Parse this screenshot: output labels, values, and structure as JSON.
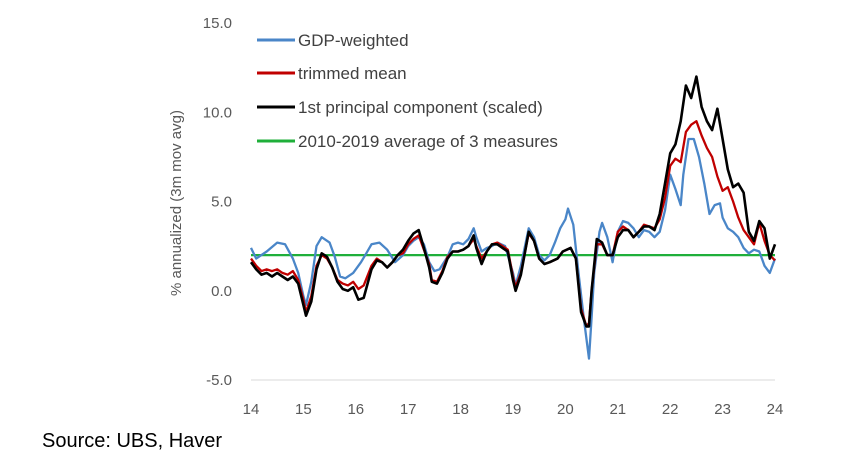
{
  "chart_data": {
    "type": "line",
    "title": "",
    "xlabel": "",
    "ylabel": "% annualized (3m mov avg)",
    "xlim": [
      14,
      24
    ],
    "ylim": [
      -5,
      15
    ],
    "x_ticks": [
      "14",
      "15",
      "16",
      "17",
      "18",
      "19",
      "20",
      "21",
      "22",
      "23",
      "24"
    ],
    "y_ticks": [
      "-5.0",
      "0.0",
      "5.0",
      "10.0",
      "15.0"
    ],
    "legend_position": "top-left",
    "grid": false,
    "series": [
      {
        "name": "GDP-weighted",
        "color": "#4A86C8",
        "points": [
          [
            14.0,
            2.4
          ],
          [
            14.1,
            1.8
          ],
          [
            14.3,
            2.2
          ],
          [
            14.5,
            2.7
          ],
          [
            14.65,
            2.6
          ],
          [
            14.8,
            1.8
          ],
          [
            14.9,
            1.0
          ],
          [
            15.0,
            -0.3
          ],
          [
            15.05,
            -0.8
          ],
          [
            15.15,
            0.5
          ],
          [
            15.25,
            2.5
          ],
          [
            15.35,
            3.0
          ],
          [
            15.5,
            2.7
          ],
          [
            15.6,
            1.9
          ],
          [
            15.7,
            0.8
          ],
          [
            15.8,
            0.7
          ],
          [
            15.95,
            1.0
          ],
          [
            16.1,
            1.6
          ],
          [
            16.2,
            2.1
          ],
          [
            16.3,
            2.6
          ],
          [
            16.45,
            2.7
          ],
          [
            16.6,
            2.3
          ],
          [
            16.75,
            1.6
          ],
          [
            16.9,
            2.0
          ],
          [
            17.0,
            2.5
          ],
          [
            17.1,
            2.8
          ],
          [
            17.2,
            3.0
          ],
          [
            17.3,
            2.6
          ],
          [
            17.4,
            1.6
          ],
          [
            17.5,
            1.1
          ],
          [
            17.6,
            1.2
          ],
          [
            17.75,
            1.9
          ],
          [
            17.85,
            2.6
          ],
          [
            17.95,
            2.7
          ],
          [
            18.05,
            2.6
          ],
          [
            18.15,
            2.9
          ],
          [
            18.25,
            3.5
          ],
          [
            18.3,
            3.0
          ],
          [
            18.4,
            2.2
          ],
          [
            18.5,
            2.4
          ],
          [
            18.6,
            2.5
          ],
          [
            18.7,
            2.7
          ],
          [
            18.85,
            2.5
          ],
          [
            19.0,
            1.0
          ],
          [
            19.05,
            0.3
          ],
          [
            19.15,
            1.4
          ],
          [
            19.25,
            2.8
          ],
          [
            19.3,
            3.5
          ],
          [
            19.4,
            3.0
          ],
          [
            19.5,
            2.0
          ],
          [
            19.6,
            1.7
          ],
          [
            19.7,
            2.0
          ],
          [
            19.8,
            2.7
          ],
          [
            19.9,
            3.5
          ],
          [
            20.0,
            4.0
          ],
          [
            20.05,
            4.6
          ],
          [
            20.15,
            3.7
          ],
          [
            20.25,
            1.0
          ],
          [
            20.35,
            -1.5
          ],
          [
            20.45,
            -3.8
          ],
          [
            20.5,
            -1.5
          ],
          [
            20.55,
            1.0
          ],
          [
            20.65,
            3.3
          ],
          [
            20.7,
            3.8
          ],
          [
            20.8,
            3.0
          ],
          [
            20.9,
            1.6
          ],
          [
            21.0,
            3.3
          ],
          [
            21.1,
            3.9
          ],
          [
            21.2,
            3.8
          ],
          [
            21.3,
            3.5
          ],
          [
            21.4,
            3.0
          ],
          [
            21.5,
            3.4
          ],
          [
            21.6,
            3.3
          ],
          [
            21.7,
            3.0
          ],
          [
            21.8,
            3.3
          ],
          [
            21.9,
            4.5
          ],
          [
            22.0,
            6.5
          ],
          [
            22.1,
            5.7
          ],
          [
            22.2,
            4.8
          ],
          [
            22.25,
            6.5
          ],
          [
            22.35,
            8.5
          ],
          [
            22.45,
            8.5
          ],
          [
            22.55,
            7.5
          ],
          [
            22.65,
            6.0
          ],
          [
            22.75,
            4.3
          ],
          [
            22.85,
            4.8
          ],
          [
            22.95,
            4.9
          ],
          [
            23.0,
            4.1
          ],
          [
            23.1,
            3.5
          ],
          [
            23.2,
            3.3
          ],
          [
            23.3,
            3.0
          ],
          [
            23.4,
            2.4
          ],
          [
            23.5,
            2.1
          ],
          [
            23.6,
            2.3
          ],
          [
            23.7,
            2.2
          ],
          [
            23.8,
            1.4
          ],
          [
            23.9,
            1.0
          ],
          [
            24.0,
            1.8
          ]
        ]
      },
      {
        "name": "trimmed mean",
        "color": "#C00000",
        "points": [
          [
            14.0,
            1.8
          ],
          [
            14.1,
            1.4
          ],
          [
            14.2,
            1.1
          ],
          [
            14.3,
            1.2
          ],
          [
            14.4,
            1.1
          ],
          [
            14.5,
            1.2
          ],
          [
            14.6,
            1.0
          ],
          [
            14.7,
            0.9
          ],
          [
            14.8,
            1.1
          ],
          [
            14.9,
            0.6
          ],
          [
            15.0,
            -0.5
          ],
          [
            15.05,
            -1.2
          ],
          [
            15.15,
            -0.3
          ],
          [
            15.25,
            1.4
          ],
          [
            15.35,
            2.0
          ],
          [
            15.45,
            1.8
          ],
          [
            15.55,
            1.3
          ],
          [
            15.65,
            0.6
          ],
          [
            15.75,
            0.4
          ],
          [
            15.85,
            0.3
          ],
          [
            15.95,
            0.5
          ],
          [
            16.05,
            0.1
          ],
          [
            16.15,
            0.3
          ],
          [
            16.3,
            1.4
          ],
          [
            16.4,
            1.8
          ],
          [
            16.5,
            1.6
          ],
          [
            16.6,
            1.3
          ],
          [
            16.7,
            1.6
          ],
          [
            16.8,
            2.0
          ],
          [
            16.9,
            2.1
          ],
          [
            17.0,
            2.6
          ],
          [
            17.1,
            2.9
          ],
          [
            17.2,
            3.1
          ],
          [
            17.3,
            2.3
          ],
          [
            17.4,
            1.5
          ],
          [
            17.45,
            0.6
          ],
          [
            17.55,
            0.5
          ],
          [
            17.65,
            1.1
          ],
          [
            17.75,
            1.9
          ],
          [
            17.85,
            2.2
          ],
          [
            17.95,
            2.2
          ],
          [
            18.05,
            2.3
          ],
          [
            18.15,
            2.5
          ],
          [
            18.25,
            2.9
          ],
          [
            18.3,
            2.5
          ],
          [
            18.4,
            1.8
          ],
          [
            18.5,
            2.2
          ],
          [
            18.6,
            2.6
          ],
          [
            18.7,
            2.7
          ],
          [
            18.8,
            2.5
          ],
          [
            18.9,
            2.3
          ],
          [
            19.0,
            0.8
          ],
          [
            19.05,
            0.2
          ],
          [
            19.15,
            1.0
          ],
          [
            19.25,
            2.5
          ],
          [
            19.3,
            3.2
          ],
          [
            19.4,
            2.8
          ],
          [
            19.5,
            1.8
          ],
          [
            19.6,
            1.5
          ],
          [
            19.7,
            1.6
          ],
          [
            19.85,
            1.8
          ],
          [
            19.95,
            2.2
          ],
          [
            20.1,
            2.4
          ],
          [
            20.2,
            1.8
          ],
          [
            20.3,
            -1.0
          ],
          [
            20.4,
            -2.0
          ],
          [
            20.45,
            -1.8
          ],
          [
            20.5,
            0.0
          ],
          [
            20.6,
            2.6
          ],
          [
            20.7,
            2.6
          ],
          [
            20.8,
            2.0
          ],
          [
            20.9,
            2.0
          ],
          [
            21.0,
            3.3
          ],
          [
            21.1,
            3.6
          ],
          [
            21.2,
            3.4
          ],
          [
            21.3,
            3.0
          ],
          [
            21.4,
            3.3
          ],
          [
            21.5,
            3.7
          ],
          [
            21.6,
            3.6
          ],
          [
            21.7,
            3.5
          ],
          [
            21.8,
            4.0
          ],
          [
            21.9,
            5.2
          ],
          [
            22.0,
            7.0
          ],
          [
            22.1,
            7.4
          ],
          [
            22.2,
            7.2
          ],
          [
            22.3,
            8.9
          ],
          [
            22.4,
            9.3
          ],
          [
            22.5,
            9.5
          ],
          [
            22.6,
            8.7
          ],
          [
            22.7,
            8.0
          ],
          [
            22.8,
            7.5
          ],
          [
            22.9,
            6.4
          ],
          [
            23.0,
            5.6
          ],
          [
            23.1,
            5.8
          ],
          [
            23.2,
            5.0
          ],
          [
            23.3,
            4.1
          ],
          [
            23.4,
            3.4
          ],
          [
            23.5,
            3.0
          ],
          [
            23.6,
            2.6
          ],
          [
            23.7,
            3.8
          ],
          [
            23.8,
            2.8
          ],
          [
            23.9,
            2.0
          ],
          [
            24.0,
            1.7
          ]
        ]
      },
      {
        "name": "1st principal component (scaled)",
        "color": "#000000",
        "points": [
          [
            14.0,
            1.6
          ],
          [
            14.1,
            1.2
          ],
          [
            14.2,
            0.9
          ],
          [
            14.3,
            1.0
          ],
          [
            14.4,
            0.8
          ],
          [
            14.5,
            1.0
          ],
          [
            14.6,
            0.8
          ],
          [
            14.7,
            0.6
          ],
          [
            14.8,
            0.8
          ],
          [
            14.9,
            0.4
          ],
          [
            15.0,
            -0.8
          ],
          [
            15.05,
            -1.4
          ],
          [
            15.15,
            -0.6
          ],
          [
            15.25,
            1.2
          ],
          [
            15.35,
            2.1
          ],
          [
            15.45,
            1.9
          ],
          [
            15.55,
            1.3
          ],
          [
            15.65,
            0.5
          ],
          [
            15.75,
            0.1
          ],
          [
            15.85,
            0.0
          ],
          [
            15.95,
            0.2
          ],
          [
            16.05,
            -0.5
          ],
          [
            16.15,
            -0.4
          ],
          [
            16.3,
            1.2
          ],
          [
            16.4,
            1.7
          ],
          [
            16.5,
            1.6
          ],
          [
            16.6,
            1.3
          ],
          [
            16.7,
            1.6
          ],
          [
            16.8,
            2.0
          ],
          [
            16.9,
            2.3
          ],
          [
            17.0,
            2.8
          ],
          [
            17.1,
            3.2
          ],
          [
            17.2,
            3.4
          ],
          [
            17.3,
            2.4
          ],
          [
            17.4,
            1.3
          ],
          [
            17.45,
            0.5
          ],
          [
            17.55,
            0.4
          ],
          [
            17.65,
            1.0
          ],
          [
            17.75,
            1.8
          ],
          [
            17.85,
            2.2
          ],
          [
            17.95,
            2.2
          ],
          [
            18.05,
            2.3
          ],
          [
            18.15,
            2.5
          ],
          [
            18.25,
            3.1
          ],
          [
            18.3,
            2.4
          ],
          [
            18.4,
            1.5
          ],
          [
            18.5,
            2.2
          ],
          [
            18.6,
            2.6
          ],
          [
            18.7,
            2.6
          ],
          [
            18.8,
            2.4
          ],
          [
            18.9,
            2.2
          ],
          [
            19.0,
            0.6
          ],
          [
            19.05,
            0.0
          ],
          [
            19.15,
            0.9
          ],
          [
            19.25,
            2.5
          ],
          [
            19.3,
            3.3
          ],
          [
            19.4,
            2.8
          ],
          [
            19.5,
            1.8
          ],
          [
            19.6,
            1.5
          ],
          [
            19.7,
            1.6
          ],
          [
            19.85,
            1.8
          ],
          [
            19.95,
            2.2
          ],
          [
            20.1,
            2.4
          ],
          [
            20.2,
            1.8
          ],
          [
            20.3,
            -1.2
          ],
          [
            20.4,
            -2.0
          ],
          [
            20.45,
            -2.0
          ],
          [
            20.5,
            0.0
          ],
          [
            20.6,
            2.9
          ],
          [
            20.7,
            2.7
          ],
          [
            20.8,
            2.0
          ],
          [
            20.9,
            2.0
          ],
          [
            21.0,
            3.0
          ],
          [
            21.1,
            3.4
          ],
          [
            21.2,
            3.4
          ],
          [
            21.3,
            3.0
          ],
          [
            21.4,
            3.3
          ],
          [
            21.5,
            3.6
          ],
          [
            21.6,
            3.6
          ],
          [
            21.7,
            3.4
          ],
          [
            21.8,
            4.3
          ],
          [
            21.9,
            6.0
          ],
          [
            22.0,
            7.7
          ],
          [
            22.1,
            8.2
          ],
          [
            22.2,
            9.5
          ],
          [
            22.3,
            11.5
          ],
          [
            22.4,
            10.8
          ],
          [
            22.5,
            12.0
          ],
          [
            22.6,
            10.3
          ],
          [
            22.7,
            9.5
          ],
          [
            22.8,
            9.0
          ],
          [
            22.9,
            10.2
          ],
          [
            23.0,
            8.5
          ],
          [
            23.1,
            6.8
          ],
          [
            23.2,
            5.8
          ],
          [
            23.3,
            6.0
          ],
          [
            23.4,
            5.5
          ],
          [
            23.5,
            3.3
          ],
          [
            23.6,
            2.8
          ],
          [
            23.7,
            3.9
          ],
          [
            23.8,
            3.5
          ],
          [
            23.9,
            1.8
          ],
          [
            24.0,
            2.6
          ]
        ]
      },
      {
        "name": "2010-2019 average of 3 measures",
        "color": "#1FAF3A",
        "points": [
          [
            14.0,
            2.0
          ],
          [
            24.0,
            2.0
          ]
        ]
      }
    ]
  },
  "footer": {
    "source": "Source: UBS, Haver"
  }
}
